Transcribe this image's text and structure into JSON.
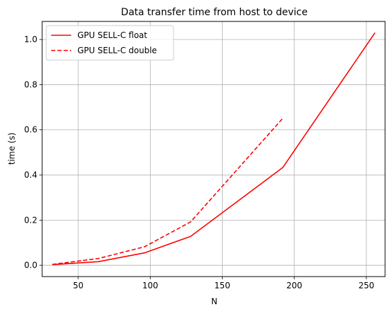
{
  "chart_data": {
    "type": "line",
    "title": "Data transfer time from host to device",
    "xlabel": "N",
    "ylabel": "time (s)",
    "xlim": [
      25,
      263
    ],
    "ylim": [
      -0.05,
      1.08
    ],
    "xticks": [
      50,
      100,
      150,
      200,
      250
    ],
    "yticks": [
      0.0,
      0.2,
      0.4,
      0.6,
      0.8,
      1.0
    ],
    "xtick_labels": [
      "50",
      "100",
      "150",
      "200",
      "250"
    ],
    "ytick_labels": [
      "0.0",
      "0.2",
      "0.4",
      "0.6",
      "0.8",
      "1.0"
    ],
    "grid": true,
    "legend_position": "top-left",
    "series": [
      {
        "name": "GPU SELL-C float",
        "color": "#ff0000",
        "linestyle": "solid",
        "x": [
          32,
          64,
          96,
          128,
          192,
          256
        ],
        "y": [
          0.003,
          0.016,
          0.055,
          0.128,
          0.433,
          1.03
        ]
      },
      {
        "name": "GPU SELL-C double",
        "color": "#ff0000",
        "linestyle": "dashed",
        "x": [
          32,
          64,
          96,
          128,
          192
        ],
        "y": [
          0.004,
          0.03,
          0.082,
          0.192,
          0.651
        ]
      }
    ]
  }
}
